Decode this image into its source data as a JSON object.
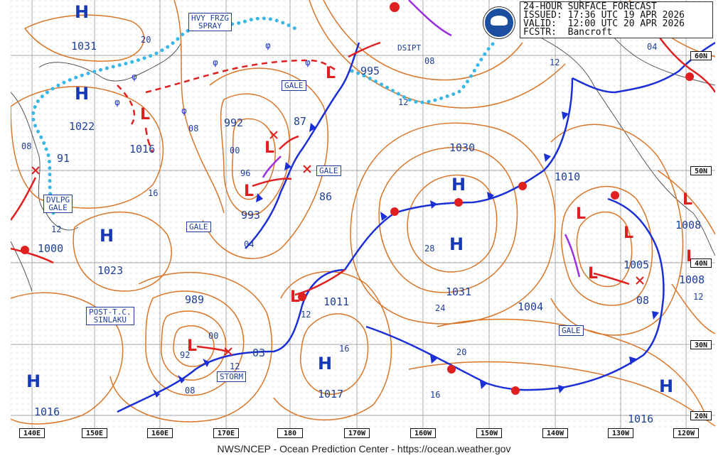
{
  "header": {
    "title": "24-HOUR SURFACE FORECAST",
    "issued": "ISSUED: 17:36 UTC 19 APR 2026",
    "valid": "VALID:  12:00 UTC 20 APR 2026",
    "forecaster": "FCSTR:  Bancroft"
  },
  "footer": "NWS/NCEP - Ocean Prediction Center - https://ocean.weather.gov",
  "longitude_labels": [
    "140E",
    "150E",
    "160E",
    "170E",
    "180",
    "170W",
    "160W",
    "150W",
    "140W",
    "130W",
    "120W"
  ],
  "latitude_labels": [
    "60N",
    "50N",
    "40N",
    "30N",
    "20N"
  ],
  "highs": [
    {
      "label": "H",
      "pressure": "1031"
    },
    {
      "label": "H",
      "pressure": "1022"
    },
    {
      "label": "H",
      "pressure": "1023"
    },
    {
      "label": "H",
      "pressure": "1016"
    },
    {
      "label": "H",
      "pressure": "1030"
    },
    {
      "label": "H",
      "pressure": "1031"
    },
    {
      "label": "H",
      "pressure": "1017"
    },
    {
      "label": "H",
      "pressure": "1016"
    }
  ],
  "lows": [
    {
      "label": "L",
      "pressure": "1016"
    },
    {
      "label": "L",
      "pressure": "992"
    },
    {
      "label": "L",
      "pressure": "993"
    },
    {
      "label": "L",
      "pressure": "995"
    },
    {
      "label": "L",
      "pressure": "989"
    },
    {
      "label": "L",
      "pressure": "1011"
    },
    {
      "label": "L",
      "pressure": "1005"
    },
    {
      "label": "L",
      "pressure": "1008"
    },
    {
      "label": "L",
      "pressure": "1008"
    },
    {
      "label": "L",
      "pressure": "1000"
    }
  ],
  "warnings": {
    "hvy_frzg_spray": "HVY FRZG\nSPRAY",
    "gale": "GALE",
    "dvlpg_gale": "DVLPG\nGALE",
    "post_tc": "POST-T.C.\nSINLAKU",
    "storm": "STORM",
    "dsipt": "DSIPT"
  },
  "contour_labels": [
    "20",
    "08",
    "91",
    "16",
    "12",
    "00",
    "96",
    "04",
    "87",
    "86",
    "08",
    "12",
    "12",
    "04",
    "28",
    "24",
    "20",
    "16",
    "16",
    "12",
    "08",
    "00",
    "92",
    "08",
    "12",
    "03",
    "1004",
    "1010",
    "08",
    "12",
    "1000"
  ],
  "colors": {
    "isobar": "#d9762a",
    "cold_front": "#1a2fd6",
    "warm_front": "#e02020",
    "occluded_front": "#9b30e0",
    "ice_edge": "#39b8e8",
    "label": "#1f3f9a"
  }
}
